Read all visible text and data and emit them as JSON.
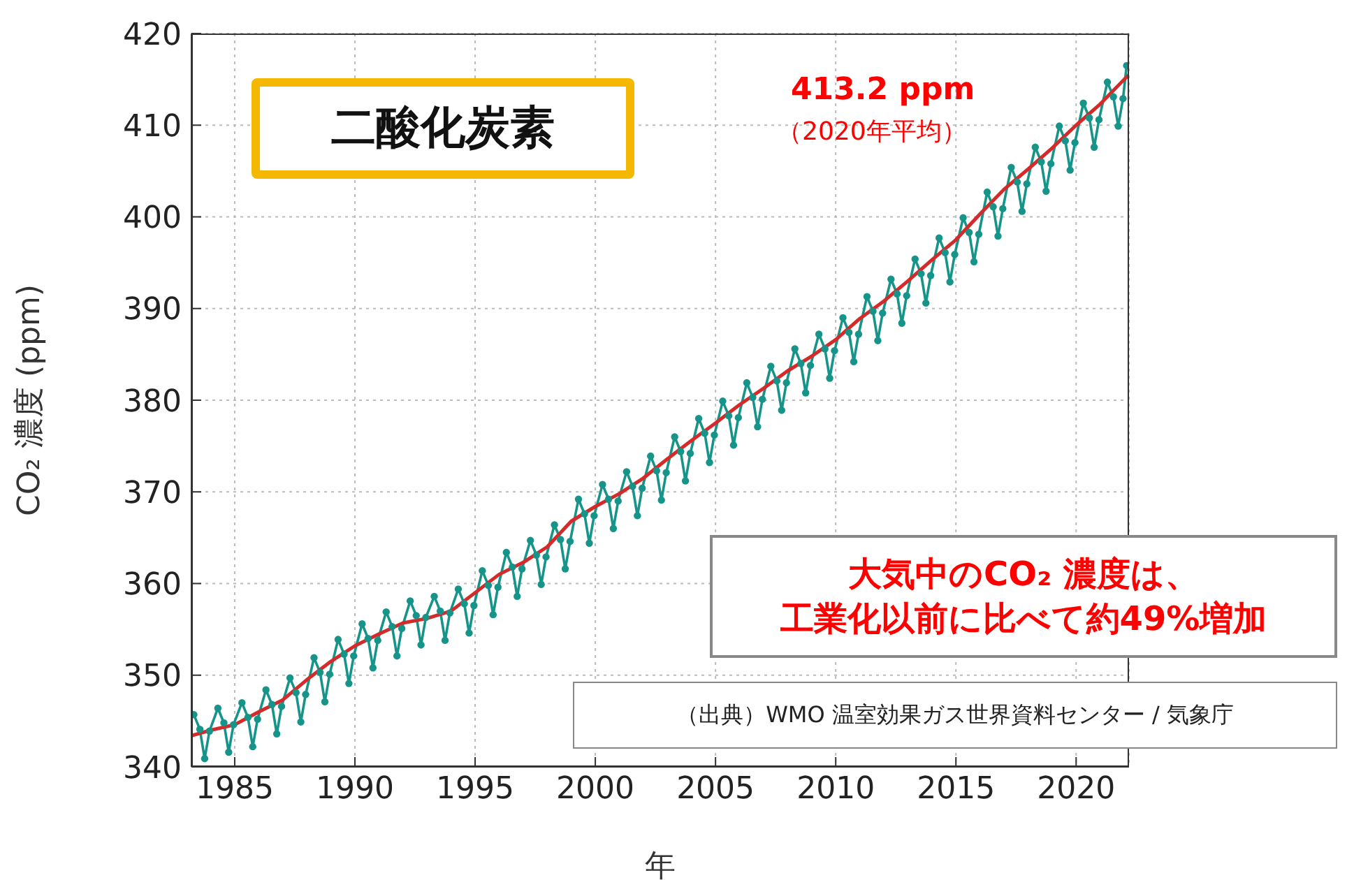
{
  "chart_data": {
    "type": "line",
    "xlabel": "年",
    "ylabel": "CO₂ 濃度 (ppm)",
    "title": "二酸化炭素",
    "annotations": [
      "413.2 ppm",
      "（2020年平均）",
      "大気中のCO₂ 濃度は、",
      "工業化以前に比べて約49%増加",
      "（出典）WMO 温室効果ガス世界資料センター / 気象庁"
    ],
    "xlim": [
      1983.2,
      2022.2
    ],
    "xticks": [
      1985,
      1990,
      1995,
      2000,
      2005,
      2010,
      2015,
      2020
    ],
    "ylim": [
      340,
      420
    ],
    "yticks": [
      340,
      350,
      360,
      370,
      380,
      390,
      400,
      410,
      420
    ],
    "grid": true,
    "series": [
      {
        "color": "#17948a",
        "marker": "circle",
        "x": [
          1983.3,
          1983.55,
          1983.75,
          1983.95,
          1984.3,
          1984.55,
          1984.75,
          1984.95,
          1985.3,
          1985.55,
          1985.75,
          1985.95,
          1986.3,
          1986.55,
          1986.75,
          1986.95,
          1987.3,
          1987.55,
          1987.75,
          1987.95,
          1988.3,
          1988.55,
          1988.75,
          1988.95,
          1989.3,
          1989.55,
          1989.75,
          1989.95,
          1990.3,
          1990.55,
          1990.75,
          1990.95,
          1991.3,
          1991.55,
          1991.75,
          1991.95,
          1992.3,
          1992.55,
          1992.75,
          1992.95,
          1993.3,
          1993.55,
          1993.75,
          1993.95,
          1994.3,
          1994.55,
          1994.75,
          1994.95,
          1995.3,
          1995.55,
          1995.75,
          1995.95,
          1996.3,
          1996.55,
          1996.75,
          1996.95,
          1997.3,
          1997.55,
          1997.75,
          1997.95,
          1998.3,
          1998.55,
          1998.75,
          1998.95,
          1999.3,
          1999.55,
          1999.75,
          1999.95,
          2000.3,
          2000.55,
          2000.75,
          2000.95,
          2001.3,
          2001.55,
          2001.75,
          2001.95,
          2002.3,
          2002.55,
          2002.75,
          2002.95,
          2003.3,
          2003.55,
          2003.75,
          2003.95,
          2004.3,
          2004.55,
          2004.75,
          2004.95,
          2005.3,
          2005.55,
          2005.75,
          2005.95,
          2006.3,
          2006.55,
          2006.75,
          2006.95,
          2007.3,
          2007.55,
          2007.75,
          2007.95,
          2008.3,
          2008.55,
          2008.75,
          2008.95,
          2009.3,
          2009.55,
          2009.75,
          2009.95,
          2010.3,
          2010.55,
          2010.75,
          2010.95,
          2011.3,
          2011.55,
          2011.75,
          2011.95,
          2012.3,
          2012.55,
          2012.75,
          2012.95,
          2013.3,
          2013.55,
          2013.75,
          2013.95,
          2014.3,
          2014.55,
          2014.75,
          2014.95,
          2015.3,
          2015.55,
          2015.75,
          2015.95,
          2016.3,
          2016.55,
          2016.75,
          2016.95,
          2017.3,
          2017.55,
          2017.75,
          2017.95,
          2018.3,
          2018.55,
          2018.75,
          2018.95,
          2019.3,
          2019.55,
          2019.75,
          2019.95,
          2020.3,
          2020.55,
          2020.75,
          2020.95,
          2021.3,
          2021.55,
          2021.75,
          2021.95,
          2022.1
        ],
        "values": [
          345.7,
          344.1,
          340.9,
          343.9,
          346.4,
          344.8,
          341.6,
          344.6,
          347.0,
          345.4,
          342.2,
          345.2,
          348.4,
          346.8,
          343.6,
          346.6,
          349.7,
          348.1,
          344.9,
          347.9,
          351.9,
          350.3,
          347.1,
          350.1,
          353.9,
          352.3,
          349.1,
          352.1,
          355.6,
          354.0,
          350.8,
          353.8,
          356.9,
          355.3,
          352.1,
          355.1,
          358.1,
          356.5,
          353.3,
          356.3,
          358.6,
          357.0,
          353.8,
          356.8,
          359.4,
          357.8,
          354.6,
          357.6,
          361.4,
          359.8,
          356.6,
          359.6,
          363.4,
          361.8,
          358.6,
          361.6,
          364.7,
          363.1,
          359.9,
          362.9,
          366.4,
          364.8,
          361.6,
          364.6,
          369.2,
          367.6,
          364.4,
          367.4,
          370.8,
          369.2,
          366.0,
          369.0,
          372.2,
          370.6,
          367.4,
          370.4,
          373.9,
          372.3,
          369.1,
          372.1,
          376.0,
          374.4,
          371.2,
          374.2,
          378.0,
          376.4,
          373.2,
          376.2,
          379.9,
          378.3,
          375.1,
          378.1,
          381.9,
          380.3,
          377.1,
          380.1,
          383.7,
          382.1,
          378.9,
          381.9,
          385.6,
          384.0,
          380.8,
          383.8,
          387.2,
          385.6,
          382.4,
          385.4,
          389.0,
          387.4,
          384.2,
          387.2,
          391.3,
          389.7,
          386.5,
          389.5,
          393.2,
          391.6,
          388.4,
          391.4,
          395.4,
          393.8,
          390.6,
          393.6,
          397.7,
          396.1,
          392.9,
          395.9,
          399.9,
          398.3,
          395.1,
          398.1,
          402.7,
          401.1,
          397.9,
          400.9,
          405.4,
          403.8,
          400.6,
          403.6,
          407.6,
          406.0,
          402.8,
          405.8,
          409.9,
          408.3,
          405.1,
          408.1,
          412.4,
          410.8,
          407.6,
          410.6,
          414.7,
          413.1,
          409.9,
          412.9,
          416.5
        ]
      },
      {
        "color": "#d42a2a",
        "marker": "none",
        "x": [
          1983.2,
          1984,
          1985,
          1986,
          1987,
          1988,
          1989,
          1990,
          1991,
          1992,
          1993,
          1994,
          1995,
          1996,
          1997,
          1998,
          1999,
          2000,
          2001,
          2002,
          2003,
          2004,
          2005,
          2006,
          2007,
          2008,
          2009,
          2010,
          2011,
          2012,
          2013,
          2014,
          2015,
          2016,
          2017,
          2018,
          2019,
          2020,
          2021,
          2022,
          2022.2
        ],
        "values": [
          343.4,
          344.0,
          344.6,
          346.0,
          347.3,
          349.5,
          351.5,
          353.2,
          354.5,
          355.7,
          356.2,
          357.0,
          359.0,
          361.0,
          362.3,
          364.0,
          366.8,
          368.4,
          369.8,
          371.5,
          373.6,
          375.6,
          377.5,
          379.5,
          381.3,
          383.2,
          384.8,
          386.6,
          388.9,
          390.8,
          393.0,
          395.3,
          397.5,
          400.3,
          403.0,
          405.2,
          407.5,
          410.0,
          412.3,
          415.0,
          415.5
        ]
      }
    ]
  }
}
